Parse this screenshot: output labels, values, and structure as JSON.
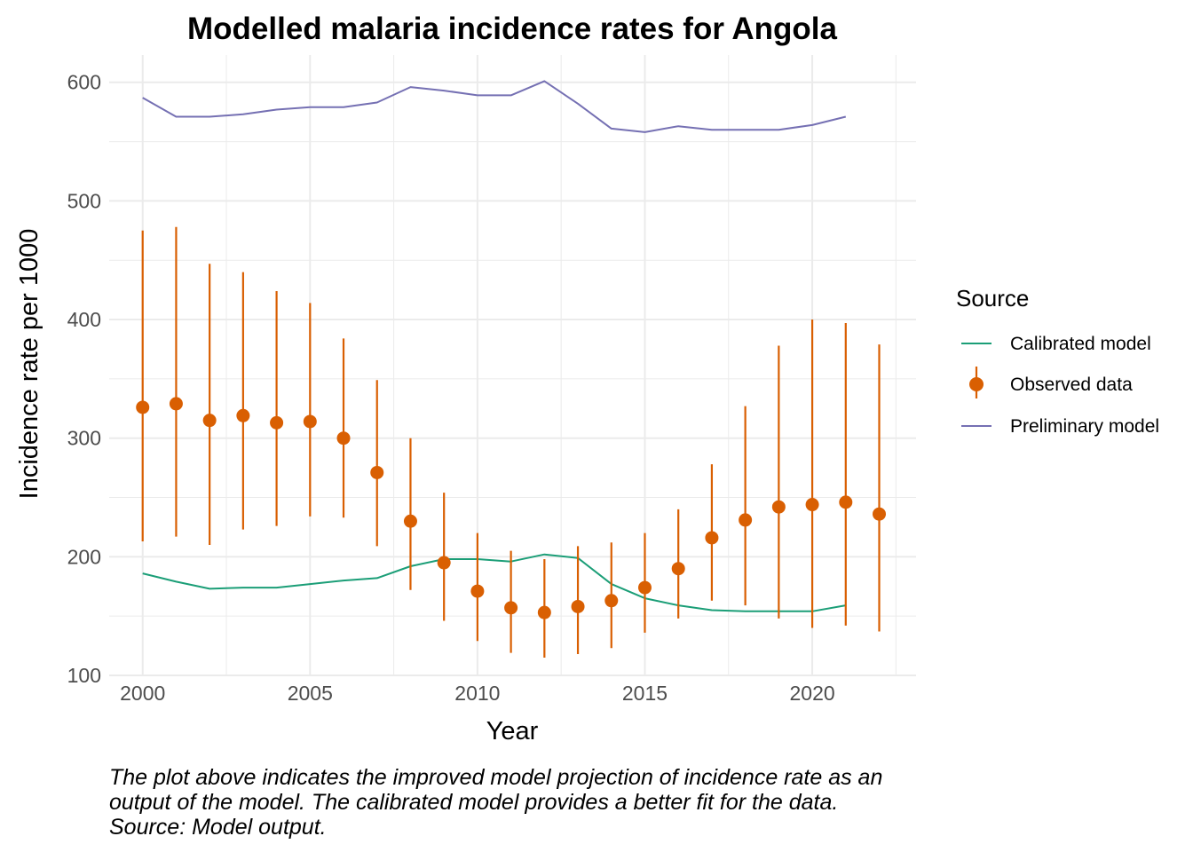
{
  "chart_data": {
    "type": "line",
    "title": "Modelled malaria incidence rates for Angola",
    "xlabel": "Year",
    "ylabel": "Incidence rate per 1000",
    "xlim": [
      1999.0,
      2023.1
    ],
    "ylim": [
      100,
      623
    ],
    "x_ticks": [
      2000,
      2005,
      2010,
      2015,
      2020
    ],
    "y_ticks": [
      100,
      200,
      300,
      400,
      500,
      600
    ],
    "grid": true,
    "legend": {
      "title": "Source",
      "position": "right",
      "entries": [
        "Calibrated model",
        "Observed data",
        "Preliminary model"
      ]
    },
    "series": [
      {
        "name": "Calibrated model",
        "kind": "line",
        "color": "#1b9e77",
        "x": [
          2000,
          2001,
          2002,
          2003,
          2004,
          2005,
          2006,
          2007,
          2008,
          2009,
          2010,
          2011,
          2012,
          2013,
          2014,
          2015,
          2016,
          2017,
          2018,
          2019,
          2020,
          2021
        ],
        "y": [
          186,
          179,
          173,
          174,
          174,
          177,
          180,
          182,
          192,
          198,
          198,
          196,
          202,
          199,
          177,
          165,
          159,
          155,
          154,
          154,
          154,
          159
        ]
      },
      {
        "name": "Observed data",
        "kind": "pointrange",
        "color": "#d95f02",
        "x": [
          2000,
          2001,
          2002,
          2003,
          2004,
          2005,
          2006,
          2007,
          2008,
          2009,
          2010,
          2011,
          2012,
          2013,
          2014,
          2015,
          2016,
          2017,
          2018,
          2019,
          2020,
          2021,
          2022
        ],
        "y": [
          326,
          329,
          315,
          319,
          313,
          314,
          300,
          271,
          230,
          195,
          171,
          157,
          153,
          158,
          163,
          174,
          190,
          216,
          231,
          242,
          244,
          246,
          236
        ],
        "lower": [
          213,
          217,
          210,
          223,
          226,
          234,
          233,
          209,
          172,
          146,
          129,
          119,
          115,
          118,
          123,
          136,
          148,
          163,
          159,
          148,
          140,
          142,
          137
        ],
        "upper": [
          475,
          478,
          447,
          440,
          424,
          414,
          384,
          349,
          300,
          254,
          220,
          205,
          198,
          209,
          212,
          220,
          240,
          278,
          327,
          378,
          400,
          397,
          379
        ]
      },
      {
        "name": "Preliminary model",
        "kind": "line",
        "color": "#7570b3",
        "x": [
          2000,
          2001,
          2002,
          2003,
          2004,
          2005,
          2006,
          2007,
          2008,
          2009,
          2010,
          2011,
          2012,
          2013,
          2014,
          2015,
          2016,
          2017,
          2018,
          2019,
          2020,
          2021
        ],
        "y": [
          587,
          571,
          571,
          573,
          577,
          579,
          579,
          583,
          596,
          593,
          589,
          589,
          601,
          582,
          561,
          558,
          563,
          560,
          560,
          560,
          564,
          571
        ]
      }
    ]
  },
  "caption": {
    "lines": [
      "The plot above indicates the improved model projection of incidence rate as an",
      "output of the model. The calibrated model provides a better fit for the data.",
      "Source: Model output."
    ]
  },
  "colors": {
    "grid": "#ebebeb",
    "tick_text": "#4d4d4d",
    "calibrated": "#1b9e77",
    "observed": "#d95f02",
    "preliminary": "#7570b3"
  }
}
